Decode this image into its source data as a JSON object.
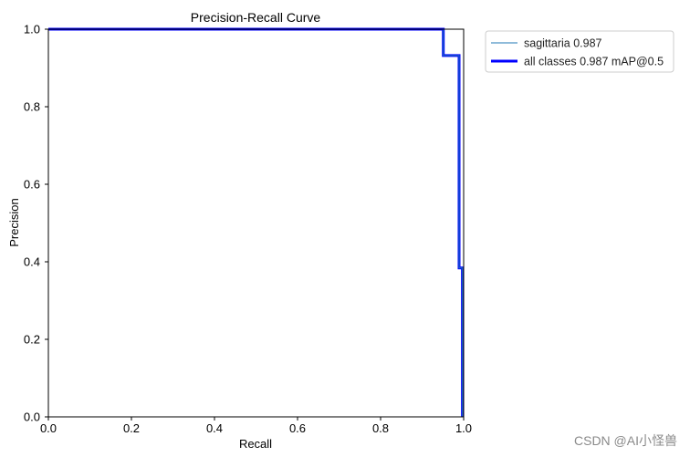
{
  "chart_data": {
    "type": "line",
    "title": "Precision-Recall Curve",
    "xlabel": "Recall",
    "ylabel": "Precision",
    "xlim": [
      0,
      1
    ],
    "ylim": [
      0,
      1
    ],
    "xticks": [
      "0.0",
      "0.2",
      "0.4",
      "0.6",
      "0.8",
      "1.0"
    ],
    "yticks": [
      "0.0",
      "0.2",
      "0.4",
      "0.6",
      "0.8",
      "1.0"
    ],
    "grid": false,
    "legend_position": "outside-top-right",
    "series": [
      {
        "name": "sagittaria 0.987",
        "color": "#1f77b4",
        "x": [
          0.0,
          0.951,
          0.951,
          0.989,
          0.989,
          0.997,
          0.997
        ],
        "y": [
          1.0,
          1.0,
          0.932,
          0.932,
          0.384,
          0.384,
          0.0
        ]
      },
      {
        "name": "all classes 0.987 mAP@0.5",
        "color": "#0000ff",
        "x": [
          0.0,
          0.951,
          0.951,
          0.989,
          0.989,
          0.997,
          0.997
        ],
        "y": [
          1.0,
          1.0,
          0.932,
          0.932,
          0.384,
          0.384,
          0.0
        ]
      }
    ]
  },
  "watermark": "CSDN @AI小怪兽"
}
